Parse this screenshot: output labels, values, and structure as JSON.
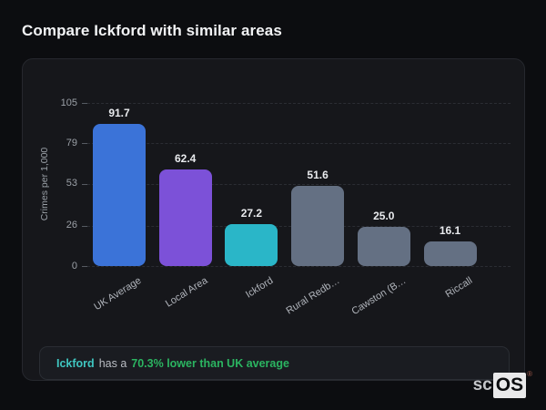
{
  "page": {
    "title": "Compare Ickford with similar areas",
    "background_color": "#0c0d10",
    "card_color": "#16171b"
  },
  "chart_data": {
    "type": "bar",
    "categories": [
      "UK Average",
      "Local Area",
      "Ickford",
      "Rural Redb…",
      "Cawston (B…",
      "Riccall"
    ],
    "values": [
      91.7,
      62.4,
      27.2,
      51.6,
      25.0,
      16.1
    ],
    "bar_colors": [
      "#3b73d8",
      "#7c51d8",
      "#2ab6c8",
      "#647083",
      "#647083",
      "#647083"
    ],
    "title": "",
    "xlabel": "",
    "ylabel": "Crimes per 1,000",
    "ylim": [
      0,
      105
    ],
    "yticks": [
      0,
      26,
      53,
      79,
      105
    ],
    "grid": "horizontal-dashed",
    "legend": "none",
    "value_label_format": "one-decimal"
  },
  "note": {
    "area_label": "Ickford",
    "middle_text": "has a",
    "highlight_text": "70.3% lower than UK average",
    "area_color": "#3fc6c0",
    "highlight_color": "#2bb561"
  },
  "logo": {
    "prefix": "sc",
    "suffix": "OS",
    "registered_mark": "®"
  }
}
